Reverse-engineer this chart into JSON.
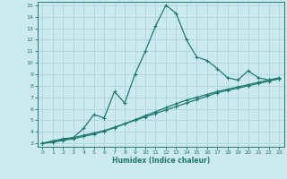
{
  "xlabel": "Humidex (Indice chaleur)",
  "bg_color": "#cce9f0",
  "grid_color": "#b0d8e2",
  "line_color": "#1e7a6e",
  "xlim": [
    -0.5,
    23.5
  ],
  "ylim": [
    2.7,
    15.3
  ],
  "xticks": [
    0,
    1,
    2,
    3,
    4,
    5,
    6,
    7,
    8,
    9,
    10,
    11,
    12,
    13,
    14,
    15,
    16,
    17,
    18,
    19,
    20,
    21,
    22,
    23
  ],
  "yticks": [
    3,
    4,
    5,
    6,
    7,
    8,
    9,
    10,
    11,
    12,
    13,
    14,
    15
  ],
  "line1_x": [
    0,
    1,
    2,
    3,
    4,
    5,
    6,
    7,
    8,
    9,
    10,
    11,
    12,
    13,
    14,
    15,
    16,
    17,
    18,
    19,
    20,
    21,
    22,
    23
  ],
  "line1_y": [
    3.0,
    3.2,
    3.3,
    3.5,
    3.7,
    3.9,
    4.1,
    4.4,
    4.7,
    5.0,
    5.3,
    5.6,
    5.9,
    6.2,
    6.5,
    6.8,
    7.1,
    7.4,
    7.6,
    7.8,
    8.0,
    8.2,
    8.4,
    8.6
  ],
  "line2_x": [
    0,
    1,
    2,
    3,
    4,
    5,
    6,
    7,
    8,
    9,
    10,
    11,
    12,
    13,
    14,
    15,
    16,
    17,
    18,
    19,
    20,
    21,
    22,
    23
  ],
  "line2_y": [
    3.0,
    3.1,
    3.25,
    3.4,
    3.6,
    3.8,
    4.05,
    4.35,
    4.7,
    5.05,
    5.4,
    5.75,
    6.1,
    6.45,
    6.75,
    7.0,
    7.25,
    7.5,
    7.7,
    7.9,
    8.1,
    8.3,
    8.5,
    8.7
  ],
  "line3_x": [
    0,
    1,
    2,
    3,
    4,
    5,
    6,
    7,
    8,
    9,
    10,
    11,
    12,
    13,
    14,
    15,
    16,
    17,
    18,
    19,
    20,
    21,
    22,
    23
  ],
  "line3_y": [
    3.0,
    3.2,
    3.4,
    3.5,
    4.3,
    5.5,
    5.2,
    7.5,
    6.5,
    9.0,
    11.0,
    13.2,
    15.0,
    14.3,
    12.0,
    10.5,
    10.2,
    9.5,
    8.7,
    8.5,
    9.3,
    8.7,
    8.5,
    8.6
  ]
}
